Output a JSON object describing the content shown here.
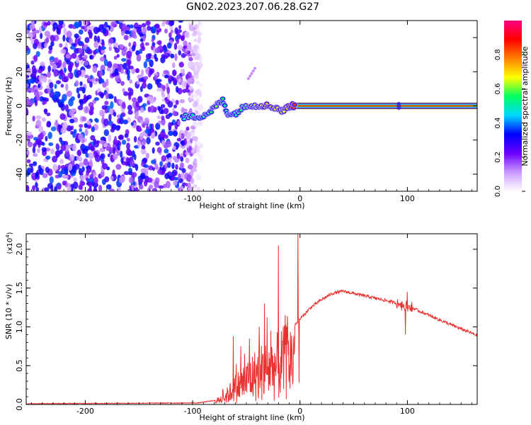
{
  "title": "GN02.2023.207.06.28.G27",
  "chart_data": [
    {
      "type": "heatmap",
      "panel": "spectrogram",
      "xlabel": "Height of straight line (km)",
      "ylabel": "Frequency (Hz)",
      "xlim": [
        -255,
        165
      ],
      "ylim": [
        -50,
        50
      ],
      "xticks": [
        -200,
        -100,
        0,
        100
      ],
      "xtick_labels": [
        "-200",
        "-100",
        "0",
        "100"
      ],
      "yticks": [
        -40,
        -20,
        0,
        20,
        40
      ],
      "ytick_labels": [
        "-40",
        "-20",
        "0",
        "20",
        "40"
      ],
      "colorbar": {
        "label": "Normalized spectral amplitude",
        "range": [
          0,
          1
        ],
        "ticks": [
          0,
          0.2,
          0.4,
          0.6,
          0.8
        ],
        "tick_labels": [
          "0.0",
          "0.2",
          "0.4",
          "0.6",
          "0.8"
        ],
        "colors": [
          "#ffffff",
          "#cc99ff",
          "#6a00ff",
          "#0000ff",
          "#00d8ff",
          "#00ff60",
          "#ffff00",
          "#ff8000",
          "#ff0000",
          "#ff0080"
        ]
      },
      "noise_region_x": [
        -255,
        -92
      ],
      "noise_amplitude": 0.3,
      "feature_track": [
        {
          "x": -108,
          "y": -6.5,
          "amp": 0.5
        },
        {
          "x": -100,
          "y": -6.5,
          "amp": 0.5
        },
        {
          "x": -92,
          "y": -6,
          "amp": 0.5
        },
        {
          "x": -85,
          "y": -4,
          "amp": 0.55
        },
        {
          "x": -78,
          "y": 0,
          "amp": 0.6
        },
        {
          "x": -72,
          "y": 3,
          "amp": 0.55
        },
        {
          "x": -68,
          "y": -4,
          "amp": 0.5
        },
        {
          "x": -62,
          "y": -5,
          "amp": 0.45
        },
        {
          "x": -55,
          "y": -2,
          "amp": 0.55
        },
        {
          "x": -48,
          "y": 1,
          "amp": 0.6
        },
        {
          "x": -42,
          "y": 0,
          "amp": 0.65
        },
        {
          "x": -36,
          "y": 0.5,
          "amp": 0.7
        },
        {
          "x": -30,
          "y": 0,
          "amp": 0.75
        },
        {
          "x": -22,
          "y": -1,
          "amp": 0.7
        },
        {
          "x": -16,
          "y": -3,
          "amp": 0.65
        },
        {
          "x": -10,
          "y": 0,
          "amp": 0.8
        },
        {
          "x": -4,
          "y": 0,
          "amp": 0.85
        }
      ],
      "steady_line": {
        "x": [
          -5,
          165
        ],
        "y": 0,
        "amp": 0.88
      },
      "stray_feature": {
        "x": [
          -48,
          -42
        ],
        "y": [
          16,
          22
        ]
      }
    },
    {
      "type": "line",
      "panel": "snr",
      "xlabel": "Height of straight line (km)",
      "ylabel": "SNR (10 * v/v)",
      "scale_note": "(x10",
      "scale_exponent": "4",
      "scale_note_close": ")",
      "xlim": [
        -255,
        165
      ],
      "ylim": [
        0,
        2.2
      ],
      "xticks": [
        -200,
        -100,
        0,
        100
      ],
      "xtick_labels": [
        "-200",
        "-100",
        "0",
        "100"
      ],
      "yticks": [
        0,
        0.5,
        1.0,
        1.5,
        2.0
      ],
      "ytick_labels": [
        "0.0",
        "0.5",
        "1.0",
        "1.5",
        "2.0"
      ],
      "color": "#e8322f",
      "envelope": {
        "x": [
          -255,
          -95,
          -80,
          -70,
          -60,
          -50,
          -40,
          -30,
          -20,
          -10,
          0,
          10,
          20,
          30,
          40,
          60,
          80,
          100,
          120,
          140,
          165
        ],
        "y": [
          0.01,
          0.02,
          0.05,
          0.15,
          0.35,
          0.5,
          0.65,
          0.75,
          0.82,
          0.95,
          1.1,
          1.25,
          1.35,
          1.43,
          1.46,
          1.4,
          1.34,
          1.27,
          1.15,
          1.03,
          0.89
        ]
      },
      "noise_region_x": [
        -80,
        -5
      ],
      "spikes": [
        {
          "x": -62,
          "y": 0.88
        },
        {
          "x": -55,
          "y": 0.75
        },
        {
          "x": -47,
          "y": 0.85
        },
        {
          "x": -38,
          "y": 1.0
        },
        {
          "x": -33,
          "y": 1.3
        },
        {
          "x": -27,
          "y": 0.95
        },
        {
          "x": -20,
          "y": 2.05
        },
        {
          "x": -14,
          "y": 1.15
        },
        {
          "x": -2,
          "y": 2.22
        },
        {
          "x": -1,
          "y": 0.28
        },
        {
          "x": 100,
          "y": 1.45
        },
        {
          "x": 98,
          "y": 0.9
        }
      ]
    }
  ]
}
